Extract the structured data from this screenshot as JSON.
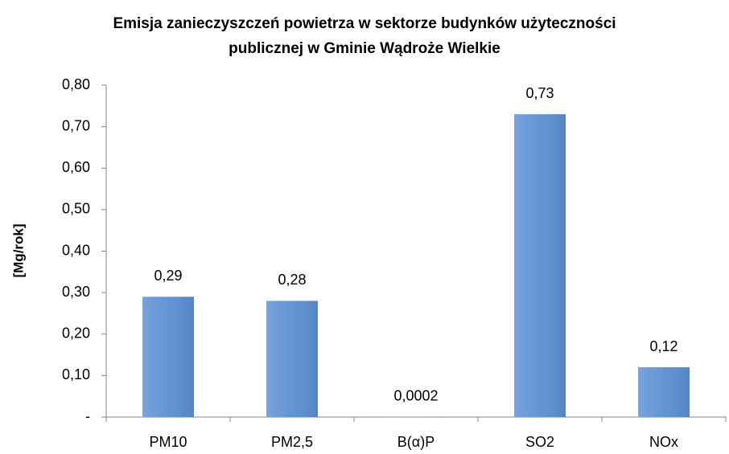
{
  "chart_data": {
    "type": "bar",
    "title": [
      "Emisja zanieczyszczeń powietrza w sektorze budynków użyteczności",
      "publicznej  w Gminie  Wądroże Wielkie"
    ],
    "y_label": "[Mg/rok]",
    "categories": [
      "PM10",
      "PM2,5",
      "B(α)P",
      "SO2",
      "NOx"
    ],
    "values": [
      0.29,
      0.28,
      0.0002,
      0.73,
      0.12
    ],
    "value_labels": [
      "0,29",
      "0,28",
      "0,0002",
      "0,73",
      "0,12"
    ],
    "color": "#5b8fd3",
    "ylim": [
      0,
      0.8
    ],
    "yticks": [
      {
        "value": 0,
        "label": "-"
      },
      {
        "value": 0.1,
        "label": "0,10"
      },
      {
        "value": 0.2,
        "label": "0,20"
      },
      {
        "value": 0.3,
        "label": "0,30"
      },
      {
        "value": 0.4,
        "label": "0,40"
      },
      {
        "value": 0.5,
        "label": "0,50"
      },
      {
        "value": 0.6,
        "label": "0,60"
      },
      {
        "value": 0.7,
        "label": "0,70"
      },
      {
        "value": 0.8,
        "label": "0,80"
      }
    ],
    "grid": false
  }
}
